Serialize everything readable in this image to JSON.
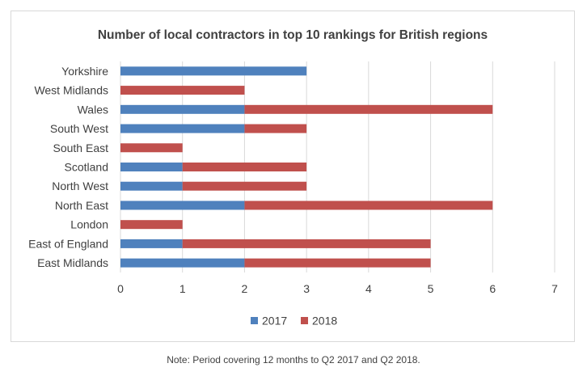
{
  "chart_data": {
    "type": "bar",
    "orientation": "horizontal",
    "stacked": true,
    "title": "Number of local contractors in top 10 rankings for British regions",
    "categories": [
      "Yorkshire",
      "West Midlands",
      "Wales",
      "South West",
      "South East",
      "Scotland",
      "North West",
      "North East",
      "London",
      "East of England",
      "East Midlands"
    ],
    "series": [
      {
        "name": "2017",
        "color": "#4f81bd",
        "values": [
          3,
          0,
          2,
          2,
          0,
          1,
          1,
          2,
          0,
          1,
          2
        ]
      },
      {
        "name": "2018",
        "color": "#c0504d",
        "values": [
          0,
          2,
          4,
          1,
          1,
          2,
          2,
          4,
          1,
          4,
          3
        ]
      }
    ],
    "xlim": [
      0,
      7
    ],
    "xticks": [
      "0",
      "1",
      "2",
      "3",
      "4",
      "5",
      "6",
      "7"
    ],
    "grid": true,
    "legend_position": "bottom"
  },
  "note": "Note: Period covering 12 months to Q2 2017 and Q2 2018."
}
